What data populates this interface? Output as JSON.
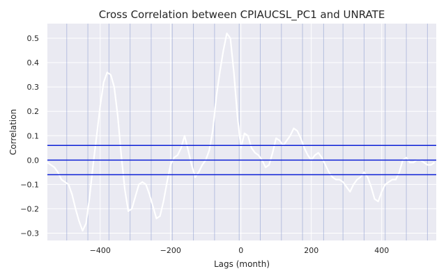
{
  "chart_data": {
    "type": "line",
    "title": "Cross Correlation between CPIAUCSL_PC1 and UNRATE",
    "xlabel": "Lags (month)",
    "ylabel": "Correlation",
    "xlim": [
      -550,
      555
    ],
    "ylim": [
      -0.33,
      0.56
    ],
    "xticks": [
      -400,
      -200,
      0,
      200,
      400
    ],
    "yticks": [
      -0.3,
      -0.2,
      -0.1,
      0.0,
      0.1,
      0.2,
      0.3,
      0.4,
      0.5
    ],
    "grid": true,
    "confidence_band": [
      -0.06,
      0.06
    ],
    "zero_line": 0.0,
    "background_color": "#eaeaf2",
    "line_color": "#ffffff",
    "band_color": "#0b1fd6",
    "vertical_marker_color": "#8a9bd0",
    "vertical_markers": [
      -495,
      -435,
      -375,
      -315,
      -255,
      -195,
      -135,
      -75,
      -5,
      55,
      115,
      175,
      235,
      290,
      350,
      410,
      470,
      530
    ],
    "series": [
      {
        "x": [
          -550,
          -540,
          -530,
          -520,
          -510,
          -500,
          -490,
          -480,
          -470,
          -460,
          -450,
          -440,
          -430,
          -420,
          -410,
          -400,
          -390,
          -380,
          -370,
          -360,
          -350,
          -340,
          -330,
          -320,
          -310,
          -300,
          -290,
          -280,
          -270,
          -260,
          -250,
          -240,
          -230,
          -220,
          -210,
          -200,
          -190,
          -180,
          -170,
          -160,
          -150,
          -140,
          -130,
          -120,
          -110,
          -100,
          -90,
          -80,
          -70,
          -60,
          -50,
          -40,
          -30,
          -20,
          -10,
          0,
          10,
          20,
          30,
          40,
          50,
          60,
          70,
          80,
          90,
          100,
          110,
          120,
          130,
          140,
          150,
          160,
          170,
          180,
          190,
          200,
          210,
          220,
          230,
          240,
          250,
          260,
          270,
          280,
          290,
          300,
          310,
          320,
          330,
          340,
          350,
          360,
          370,
          380,
          390,
          400,
          410,
          420,
          430,
          440,
          450,
          460,
          470,
          480,
          490,
          500,
          510,
          520,
          530,
          540,
          550
        ],
        "values": [
          -0.01,
          -0.02,
          -0.03,
          -0.05,
          -0.08,
          -0.09,
          -0.1,
          -0.14,
          -0.2,
          -0.25,
          -0.29,
          -0.26,
          -0.15,
          -0.02,
          0.1,
          0.22,
          0.32,
          0.36,
          0.35,
          0.3,
          0.18,
          0.02,
          -0.12,
          -0.21,
          -0.2,
          -0.15,
          -0.1,
          -0.09,
          -0.1,
          -0.14,
          -0.19,
          -0.24,
          -0.23,
          -0.17,
          -0.09,
          -0.02,
          0.01,
          0.02,
          0.05,
          0.1,
          0.04,
          -0.02,
          -0.07,
          -0.05,
          -0.02,
          0.0,
          0.04,
          0.12,
          0.26,
          0.36,
          0.45,
          0.52,
          0.5,
          0.36,
          0.18,
          0.05,
          0.11,
          0.1,
          0.05,
          0.03,
          0.02,
          0.0,
          -0.03,
          -0.02,
          0.03,
          0.09,
          0.08,
          0.06,
          0.08,
          0.1,
          0.13,
          0.12,
          0.09,
          0.05,
          0.02,
          0.0,
          0.02,
          0.03,
          0.01,
          -0.02,
          -0.05,
          -0.07,
          -0.08,
          -0.08,
          -0.09,
          -0.11,
          -0.13,
          -0.1,
          -0.08,
          -0.07,
          -0.05,
          -0.07,
          -0.11,
          -0.16,
          -0.17,
          -0.13,
          -0.1,
          -0.09,
          -0.08,
          -0.08,
          -0.05,
          0.0,
          0.01,
          -0.01,
          -0.01,
          0.0,
          0.0,
          -0.01,
          -0.02,
          -0.02,
          -0.01
        ]
      }
    ]
  }
}
